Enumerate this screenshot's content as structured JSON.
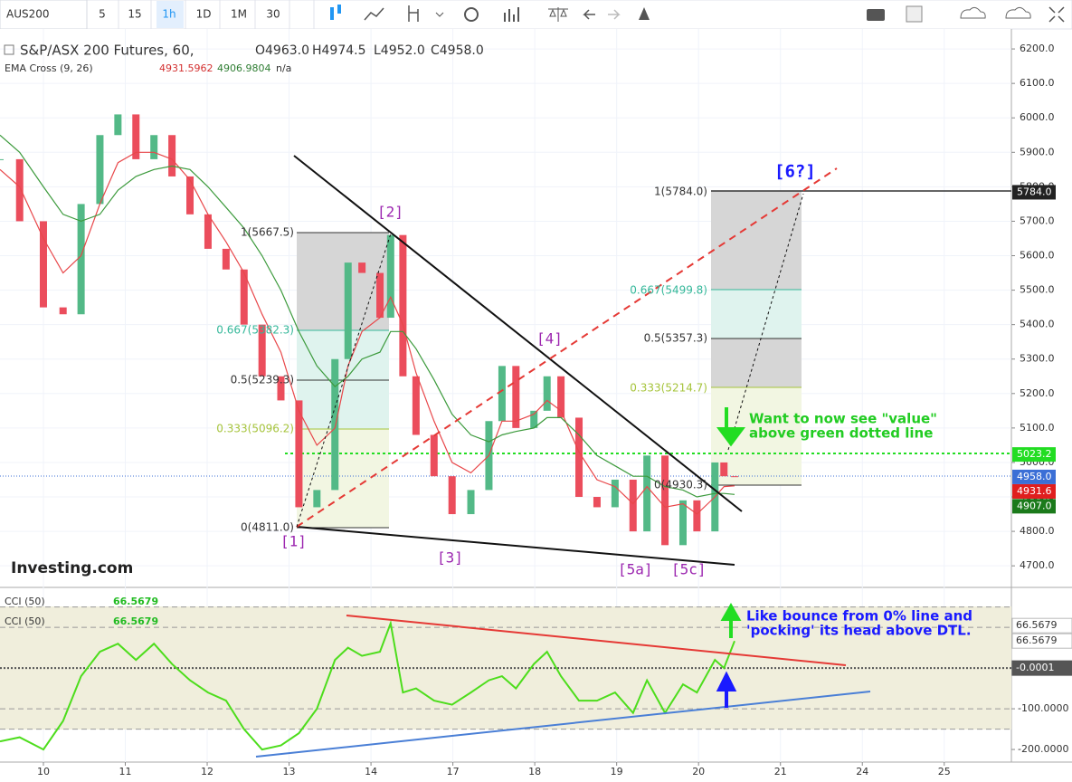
{
  "toolbar": {
    "symbol": "AUS200",
    "intervals": [
      "5",
      "15",
      "1h",
      "1D",
      "1M",
      "30"
    ]
  },
  "chart_data": [
    {
      "type": "candlestick",
      "title": "S&P/ASX 200 Futures, 60,",
      "ohlc": [
        "O4963.0",
        "H4974.5",
        "L4952.0",
        "C4958.0"
      ],
      "indicator": "EMA Cross (9, 26)",
      "indicator_values": [
        4931.5962,
        4906.9804,
        "n/a"
      ],
      "brand": "Investing.com",
      "up_color": "#53b987",
      "down_color": "#eb4d5c",
      "x": [
        -0.53,
        -0.29,
        0,
        0.24,
        0.46,
        0.69,
        0.91,
        1.13,
        1.35,
        1.57,
        1.79,
        2.01,
        2.23,
        2.45,
        2.67,
        2.9,
        3.12,
        3.34,
        3.56,
        3.72,
        3.89,
        4.11,
        4.24,
        4.39,
        4.55,
        4.77,
        4.99,
        5.22,
        5.44,
        5.6,
        5.77,
        5.99,
        6.15,
        6.32,
        6.54,
        6.76,
        6.98,
        7.2,
        7.37,
        7.59,
        7.81,
        7.98,
        8.2,
        8.31,
        8.44
      ],
      "values": [
        5880,
        5700,
        5450,
        5430,
        5750,
        5950,
        6010,
        5880,
        5950,
        5830,
        5720,
        5620,
        5560,
        5400,
        5250,
        5180,
        4870,
        4920,
        5300,
        5580,
        5550,
        5420,
        5660,
        5250,
        5080,
        4960,
        4850,
        4920,
        5120,
        5280,
        5100,
        5150,
        5250,
        5130,
        4900,
        4870,
        4950,
        4800,
        5020,
        4760,
        4890,
        4800,
        5000,
        4960,
        4958
      ],
      "series": [
        {
          "color": "#e8474a",
          "values": [
            5850,
            5800,
            5650,
            5550,
            5600,
            5750,
            5870,
            5900,
            5900,
            5880,
            5820,
            5720,
            5640,
            5550,
            5430,
            5320,
            5150,
            5050,
            5100,
            5280,
            5380,
            5420,
            5480,
            5400,
            5260,
            5120,
            5000,
            4970,
            5020,
            5120,
            5120,
            5140,
            5180,
            5150,
            5030,
            4950,
            4930,
            4880,
            4930,
            4870,
            4880,
            4850,
            4900,
            4930,
            4932
          ]
        },
        {
          "color": "#3c9a3c",
          "values": [
            5950,
            5900,
            5800,
            5720,
            5700,
            5720,
            5790,
            5830,
            5850,
            5860,
            5850,
            5800,
            5740,
            5680,
            5600,
            5500,
            5380,
            5280,
            5220,
            5250,
            5300,
            5320,
            5380,
            5380,
            5330,
            5240,
            5140,
            5080,
            5060,
            5080,
            5090,
            5100,
            5130,
            5130,
            5080,
            5020,
            4990,
            4960,
            4960,
            4930,
            4920,
            4900,
            4910,
            4910,
            4907
          ]
        }
      ],
      "xlim": [
        -0.53,
        11.82
      ],
      "xticks": [
        {
          "value": 0,
          "label": "10"
        },
        {
          "value": 1,
          "label": "11"
        },
        {
          "value": 2,
          "label": "12"
        },
        {
          "value": 3,
          "label": "13"
        },
        {
          "value": 4,
          "label": "14"
        },
        {
          "value": 5,
          "label": "17"
        },
        {
          "value": 6,
          "label": "18"
        },
        {
          "value": 7,
          "label": "19"
        },
        {
          "value": 8,
          "label": "20"
        },
        {
          "value": 9,
          "label": "21"
        },
        {
          "value": 10,
          "label": "24"
        },
        {
          "value": 11,
          "label": "25"
        }
      ],
      "ylim": [
        4640,
        6258
      ],
      "yticks": [
        {
          "value": 6200,
          "label": "6200.0"
        },
        {
          "value": 6100,
          "label": "6100.0"
        },
        {
          "value": 6000,
          "label": "6000.0"
        },
        {
          "value": 5900,
          "label": "5900.0"
        },
        {
          "value": 5800,
          "label": "5800.0"
        },
        {
          "value": 5700,
          "label": "5700.0"
        },
        {
          "value": 5600,
          "label": "5600.0"
        },
        {
          "value": 5500,
          "label": "5500.0"
        },
        {
          "value": 5400,
          "label": "5400.0"
        },
        {
          "value": 5300,
          "label": "5300.0"
        },
        {
          "value": 5200,
          "label": "5200.0"
        },
        {
          "value": 5100,
          "label": "5100.0"
        },
        {
          "value": 5000,
          "label": "5000.0"
        },
        {
          "value": 4900,
          "label": "4900.0"
        },
        {
          "value": 4800,
          "label": "4800.0"
        },
        {
          "value": 4700,
          "label": "4700.0"
        }
      ],
      "grid": true,
      "price_tags": [
        {
          "value": 5784,
          "label": "5784.0",
          "color": "#222222"
        },
        {
          "value": 5023.2,
          "label": "5023.2",
          "color": "#22dd22"
        },
        {
          "value": 4958,
          "label": "4958.0",
          "color": "#3b6fd6"
        },
        {
          "value": 4931.6,
          "label": "4931.6",
          "color": "#e01e1e"
        },
        {
          "value": 4907,
          "label": "4907.0",
          "color": "#1b7a1b"
        }
      ],
      "fib_labels": [
        "1(5667.5)",
        "0.667(5382.3)",
        "0.5(5239.3)",
        "0.333(5096.2)",
        "0(4811.0)",
        "1(5784.0)",
        "0.667(5499.8)",
        "0.5(5357.3)",
        "0.333(5214.7)",
        "0(4930.3)"
      ],
      "wave_labels": [
        "[1]",
        "[2]",
        "[3]",
        "[4]",
        "[5a]",
        "[5c]",
        "[6?]"
      ],
      "notes": [
        "Want to now see \"value\"",
        "above green dotted line"
      ]
    },
    {
      "type": "line",
      "color": "#4ddd1c",
      "legends": [
        {
          "name": "CCI (50)",
          "value": 66.5679
        },
        {
          "name": "CCI (50)",
          "value": 66.5679
        }
      ],
      "x": [
        -0.53,
        -0.29,
        0,
        0.24,
        0.46,
        0.69,
        0.91,
        1.13,
        1.35,
        1.57,
        1.79,
        2.01,
        2.23,
        2.45,
        2.67,
        2.9,
        3.12,
        3.34,
        3.56,
        3.72,
        3.89,
        4.11,
        4.24,
        4.39,
        4.55,
        4.77,
        4.99,
        5.22,
        5.44,
        5.6,
        5.77,
        5.99,
        6.15,
        6.32,
        6.54,
        6.76,
        6.98,
        7.2,
        7.37,
        7.59,
        7.81,
        7.98,
        8.2,
        8.31,
        8.44
      ],
      "values": [
        -180,
        -170,
        -200,
        -130,
        -20,
        40,
        60,
        20,
        60,
        10,
        -30,
        -60,
        -80,
        -150,
        -200,
        -190,
        -160,
        -100,
        20,
        50,
        30,
        40,
        110,
        -60,
        -50,
        -80,
        -90,
        -60,
        -30,
        -20,
        -50,
        10,
        40,
        -20,
        -80,
        -80,
        -60,
        -110,
        -30,
        -110,
        -40,
        -60,
        20,
        0,
        66.5679
      ],
      "xlim": [
        -0.53,
        11.82
      ],
      "ylim": [
        -231,
        196
      ],
      "yticks": [
        {
          "value": -100,
          "label": "-100.0000"
        },
        {
          "value": -200,
          "label": "-200.0000"
        }
      ],
      "levels": [
        150,
        100,
        0,
        -100,
        -150
      ],
      "value_tags": [
        {
          "value": 66.5679,
          "label": "66.5679",
          "color": "#ffffff"
        },
        {
          "value": 66.5679,
          "label": "66.5679",
          "color": "#ffffff"
        },
        {
          "value": -0.0001,
          "label": "-0.0001",
          "color": "#555555"
        }
      ],
      "notes": [
        "Like bounce from 0% line and",
        "'pocking' its head above DTL."
      ]
    }
  ]
}
